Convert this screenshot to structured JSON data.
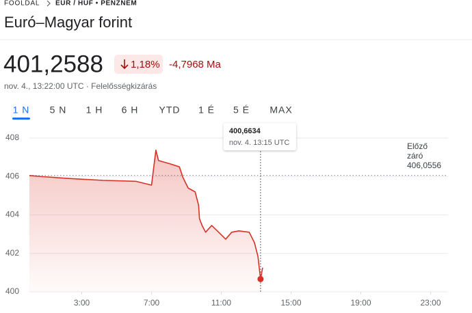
{
  "header": {
    "breadcrumb": [
      "FŐOLDAL",
      "EUR / HUF • PÉNZNEM"
    ],
    "title": "Euró–Magyar forint",
    "price": "401,2588",
    "change_percent": "1,18%",
    "change_abs": "-4,7968 Ma",
    "timestamp": "nov. 4., 13:22:00 UTC · Felelősségkizárás"
  },
  "tabs": [
    "1 N",
    "5 N",
    "1 H",
    "6 H",
    "YTD",
    "1 É",
    "5 É",
    "MAX"
  ],
  "active_tab": 0,
  "chart_data": {
    "type": "line",
    "color": "#d93025",
    "x": [
      0,
      0.65,
      2.2,
      4.2,
      6.1,
      7.0,
      7.25,
      7.4,
      8.1,
      8.6,
      8.8,
      9.1,
      9.5,
      9.7,
      9.75,
      9.9,
      10.1,
      10.45,
      10.85,
      11.25,
      11.6,
      12.0,
      12.6,
      12.9,
      13.1,
      13.25,
      13.37
    ],
    "values": [
      406.05,
      406.0,
      405.9,
      405.8,
      405.75,
      405.55,
      407.37,
      406.83,
      406.65,
      406.5,
      405.95,
      405.4,
      405.2,
      404.5,
      403.8,
      403.45,
      403.1,
      403.45,
      403.1,
      402.74,
      403.1,
      403.17,
      403.1,
      402.56,
      401.85,
      400.6634,
      401.2588
    ],
    "xlim": [
      0,
      24
    ],
    "xticks": [
      {
        "value": 3,
        "label": "3:00"
      },
      {
        "value": 7,
        "label": "7:00"
      },
      {
        "value": 11,
        "label": "11:00"
      },
      {
        "value": 15,
        "label": "15:00"
      },
      {
        "value": 19,
        "label": "19:00"
      },
      {
        "value": 23,
        "label": "23:00"
      }
    ],
    "ylim": [
      400,
      408
    ],
    "yticks": [
      400,
      402,
      404,
      406,
      408
    ],
    "grid": true,
    "reference": {
      "label": [
        "Előző",
        "záró"
      ],
      "value": 406.0556,
      "value_label": "406,0556"
    },
    "tooltip": {
      "x": 13.25,
      "value": 400.6634,
      "label": "400,6634",
      "time_label": "nov. 4. 13:15 UTC"
    }
  }
}
